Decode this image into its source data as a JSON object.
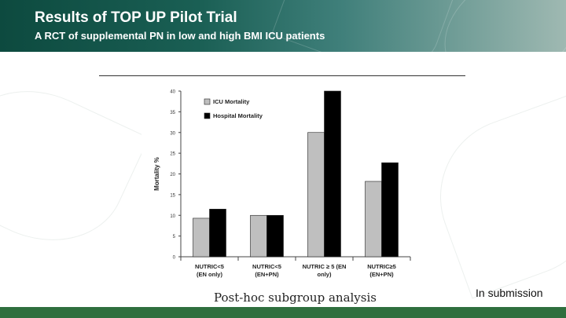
{
  "header": {
    "title": "Results of TOP UP Pilot Trial",
    "subtitle": "A RCT of supplemental PN in low and high BMI ICU patients"
  },
  "caption": "Post-hoc subgroup analysis",
  "note": "In submission",
  "colors": {
    "header_dark": "#0d4a3f",
    "footer": "#2f6f3e",
    "icu_bar": "#bfbfbf",
    "hospital_bar": "#000000"
  },
  "chart_data": {
    "type": "bar",
    "categories": [
      [
        "NUTRIC<5",
        "(EN only)"
      ],
      [
        "NUTRIC<5",
        "(EN+PN)"
      ],
      [
        "NUTRIC ≥ 5 (EN",
        "only)"
      ],
      [
        "NUTRIC≥5",
        "(EN+PN)"
      ]
    ],
    "series": [
      {
        "name": "ICU Mortality",
        "color": "#bfbfbf",
        "values": [
          9.3,
          10,
          30,
          18.2
        ]
      },
      {
        "name": "Hospital Mortality",
        "color": "#000000",
        "values": [
          11.5,
          10,
          40,
          22.7
        ]
      }
    ],
    "title": "",
    "xlabel": "",
    "ylabel": "Mortality %",
    "ylim": [
      0,
      40
    ],
    "yticks": [
      "0",
      "5",
      "10",
      "15",
      "20",
      "25",
      "30",
      "35",
      "40"
    ],
    "legend": "top-left",
    "grid": false
  }
}
